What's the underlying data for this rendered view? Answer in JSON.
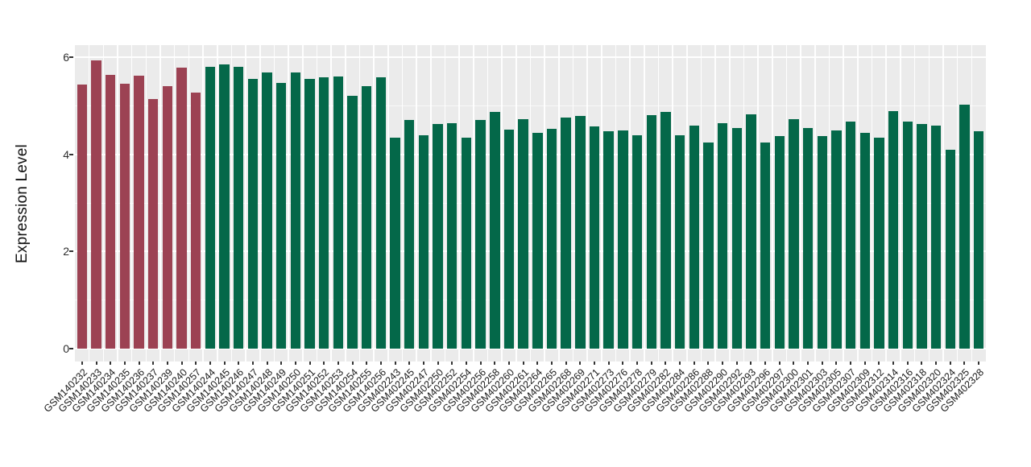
{
  "figure": {
    "background": "#FFFFFF",
    "panel_background": "#EBEBEB",
    "grid_color": "#FFFFFF",
    "axis_tick_color": "#333333"
  },
  "chart_data": {
    "type": "bar",
    "title": "",
    "xlabel": "",
    "ylabel": "Expression Level",
    "ylim": [
      0,
      6
    ],
    "panel_value_range": [
      -0.265,
      6.25
    ],
    "grid": true,
    "legend_position": "none",
    "ytick_labels": [
      "0",
      "2",
      "4",
      "6"
    ],
    "ytick_values": [
      0,
      2,
      4,
      6
    ],
    "yminor_values": [
      1,
      3,
      5
    ],
    "group_colors": [
      "#9C4253",
      "#046849"
    ],
    "group_sizes": [
      9,
      55
    ],
    "categories": [
      "GSM140232",
      "GSM140233",
      "GSM140234",
      "GSM140235",
      "GSM140236",
      "GSM140237",
      "GSM140239",
      "GSM140240",
      "GSM140257",
      "GSM140244",
      "GSM140245",
      "GSM140246",
      "GSM140247",
      "GSM140248",
      "GSM140249",
      "GSM140250",
      "GSM140251",
      "GSM140252",
      "GSM140253",
      "GSM140254",
      "GSM140255",
      "GSM140256",
      "GSM402243",
      "GSM402245",
      "GSM402247",
      "GSM402250",
      "GSM402252",
      "GSM402254",
      "GSM402256",
      "GSM402258",
      "GSM402260",
      "GSM402261",
      "GSM402264",
      "GSM402265",
      "GSM402268",
      "GSM402269",
      "GSM402271",
      "GSM402273",
      "GSM402276",
      "GSM402278",
      "GSM402279",
      "GSM402282",
      "GSM402284",
      "GSM402286",
      "GSM402288",
      "GSM402290",
      "GSM402292",
      "GSM402293",
      "GSM402296",
      "GSM402297",
      "GSM402300",
      "GSM402301",
      "GSM402303",
      "GSM402305",
      "GSM402307",
      "GSM402309",
      "GSM402312",
      "GSM402314",
      "GSM402316",
      "GSM402318",
      "GSM402320",
      "GSM402324",
      "GSM402325",
      "GSM402328"
    ],
    "values": [
      5.43,
      5.93,
      5.63,
      5.45,
      5.62,
      5.14,
      5.4,
      5.79,
      5.27,
      5.8,
      5.85,
      5.8,
      5.56,
      5.69,
      5.47,
      5.69,
      5.55,
      5.58,
      5.61,
      5.21,
      5.4,
      5.58,
      4.35,
      4.7,
      4.39,
      4.62,
      4.65,
      4.35,
      4.71,
      4.88,
      4.51,
      4.72,
      4.45,
      4.53,
      4.75,
      4.79,
      4.57,
      4.48,
      4.5,
      4.4,
      4.8,
      4.88,
      4.4,
      4.6,
      4.24,
      4.65,
      4.55,
      4.83,
      4.25,
      4.37,
      4.72,
      4.54,
      4.38,
      4.5,
      4.67,
      4.44,
      4.35,
      4.89,
      4.68,
      4.62,
      4.59,
      4.09,
      5.03,
      4.47
    ]
  }
}
